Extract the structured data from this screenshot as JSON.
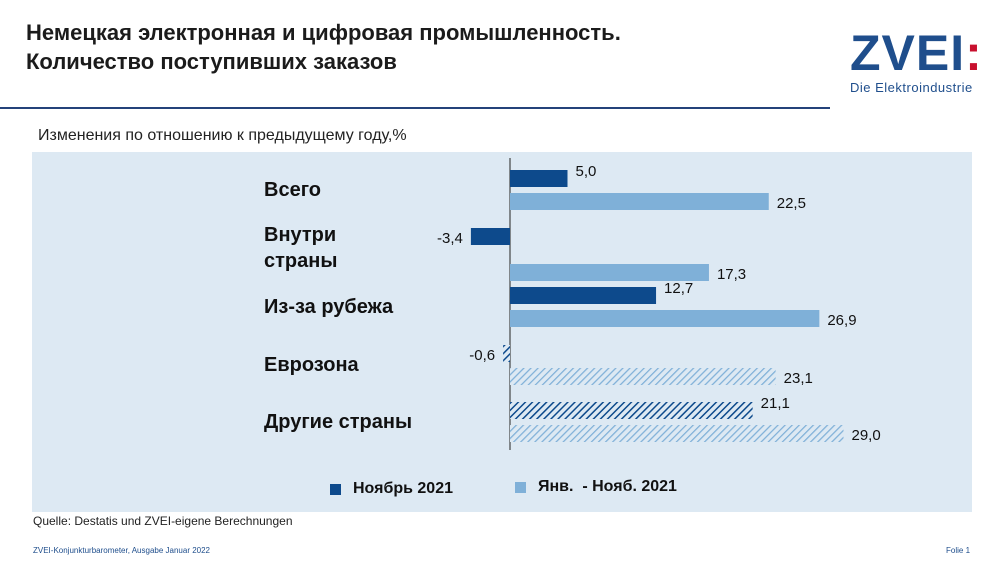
{
  "header": {
    "title_line1": "Немецкая электронная и цифровая промышленность.",
    "title_line2": "Количество поступивших заказов",
    "subtitle": "Изменения по отношению к предыдущему году,%"
  },
  "logo": {
    "mark": "ZVEI",
    "mark_colon": ":",
    "tagline": "Die Elektroindustrie"
  },
  "chart_data": {
    "type": "bar",
    "orientation": "horizontal",
    "title": "",
    "xlabel": "",
    "ylabel": "",
    "categories": [
      [
        "Всего"
      ],
      [
        "Внутри",
        "страны"
      ],
      [
        "Из-за рубежа"
      ],
      [
        "Еврозона"
      ],
      [
        "Другие страны"
      ]
    ],
    "series": [
      {
        "name": "Ноябрь 2021",
        "color": "#0d4a8c",
        "values": [
          5.0,
          -3.4,
          12.7,
          -0.6,
          21.1
        ],
        "labels": [
          "5,0",
          "-3,4",
          "12,7",
          "-0,6",
          "21,1"
        ],
        "hatched": [
          false,
          false,
          false,
          true,
          true
        ]
      },
      {
        "name": "Янв.  - Нояб. 2021",
        "color": "#7fb0d8",
        "values": [
          22.5,
          17.3,
          26.9,
          23.1,
          29.0
        ],
        "labels": [
          "22,5",
          "17,3",
          "26,9",
          "23,1",
          "29,0"
        ],
        "hatched": [
          false,
          false,
          false,
          true,
          true
        ]
      }
    ],
    "legend_position": "bottom",
    "grid": false
  },
  "legend": {
    "item1": "Ноябрь 2021",
    "item2": "Янв.  - Нояб. 2021"
  },
  "footer": {
    "source": "Quelle: Destatis und ZVEI-eigene Berechnungen",
    "left": "ZVEI-Konjunkturbarometer, Ausgabe Januar 2022",
    "right": "Folie 1"
  }
}
